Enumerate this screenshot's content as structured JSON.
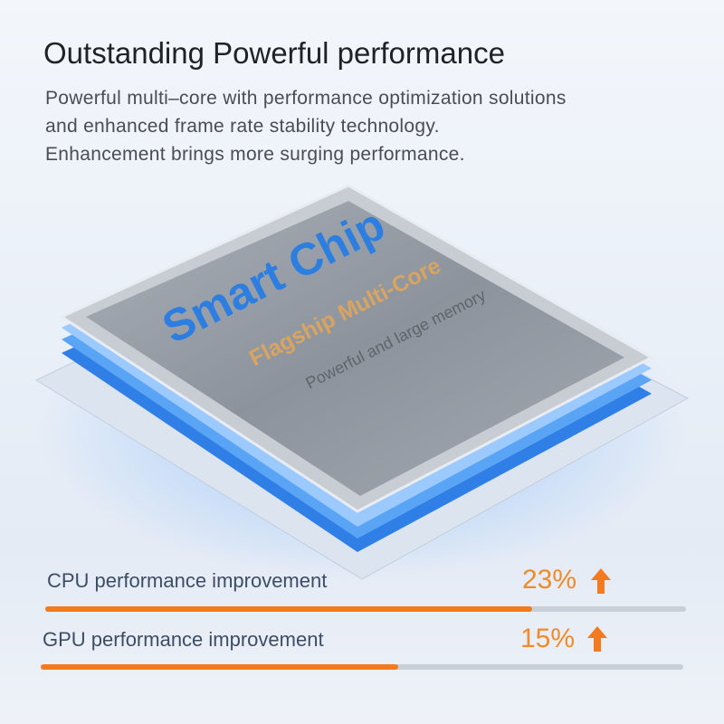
{
  "header": {
    "title": "Outstanding Powerful performance",
    "description": [
      "Powerful multi–core with performance optimization solutions",
      "and enhanced frame rate stability technology.",
      "Enhancement brings more surging performance."
    ]
  },
  "chip": {
    "title": "Smart Chip",
    "subtitle": "Flagship Multi-Core",
    "caption": "Powerful and large memory"
  },
  "stats": [
    {
      "label": "CPU performance improvement",
      "value": "23%"
    },
    {
      "label": "GPU performance improvement",
      "value": "15%"
    }
  ]
}
